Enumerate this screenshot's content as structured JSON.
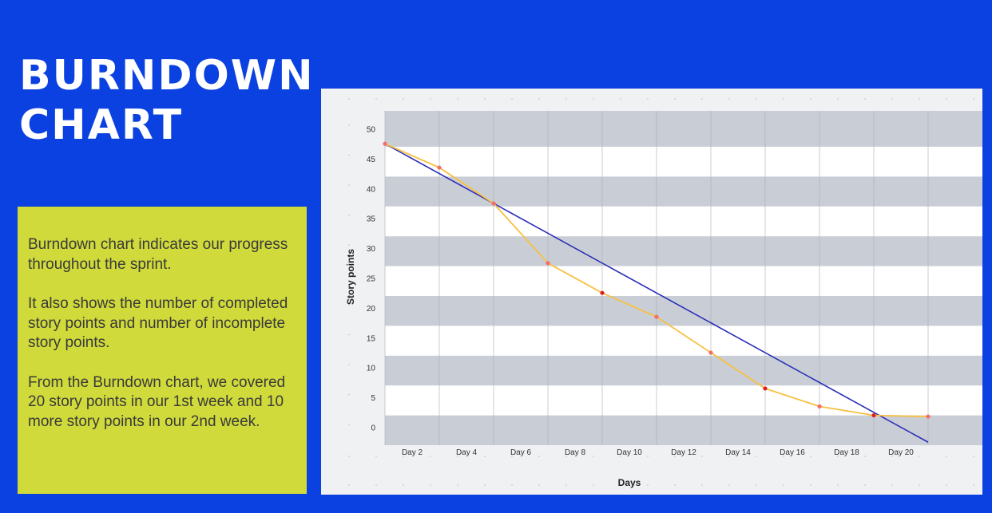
{
  "slide": {
    "title_line1": "BURNDOWN",
    "title_line2": "CHART",
    "paragraphs": [
      "Burndown chart indicates our progress throughout the sprint.",
      "It also shows the number of completed story points and number of incomplete story points.",
      "From the Burndown chart, we covered 20 story points in our 1st week and 10 more story points in our 2nd week."
    ]
  },
  "colors": {
    "background": "#0a41e0",
    "info_box": "#d0da3a",
    "ideal_line": "#2c2fb8",
    "actual_line": "#f7c040",
    "actual_point": "#f36d6d",
    "actual_point_dark": "#e01e1e",
    "band_dark": "#c9ced6"
  },
  "chart_data": {
    "type": "line",
    "title": "",
    "xlabel": "Days",
    "ylabel": "Story points",
    "x_tick_labels": [
      "Day 2",
      "Day 4",
      "Day 6",
      "Day 8",
      "Day 10",
      "Day 12",
      "Day 14",
      "Day 16",
      "Day 18",
      "Day 20"
    ],
    "y_ticks": [
      0,
      5,
      10,
      15,
      20,
      25,
      30,
      35,
      40,
      45,
      50
    ],
    "ylim": [
      -3,
      53
    ],
    "xlim": [
      1,
      22
    ],
    "grid": true,
    "legend": "none",
    "series": [
      {
        "key": "ideal",
        "x": [
          1,
          21
        ],
        "y": [
          47.5,
          -2.5
        ]
      },
      {
        "key": "actual",
        "x": [
          1,
          3,
          5,
          7,
          9,
          11,
          13,
          15,
          17,
          19,
          21
        ],
        "y": [
          47.5,
          43.5,
          37.5,
          27.5,
          22.5,
          18.5,
          12.5,
          6.5,
          3.5,
          2.0,
          1.8
        ]
      }
    ]
  }
}
